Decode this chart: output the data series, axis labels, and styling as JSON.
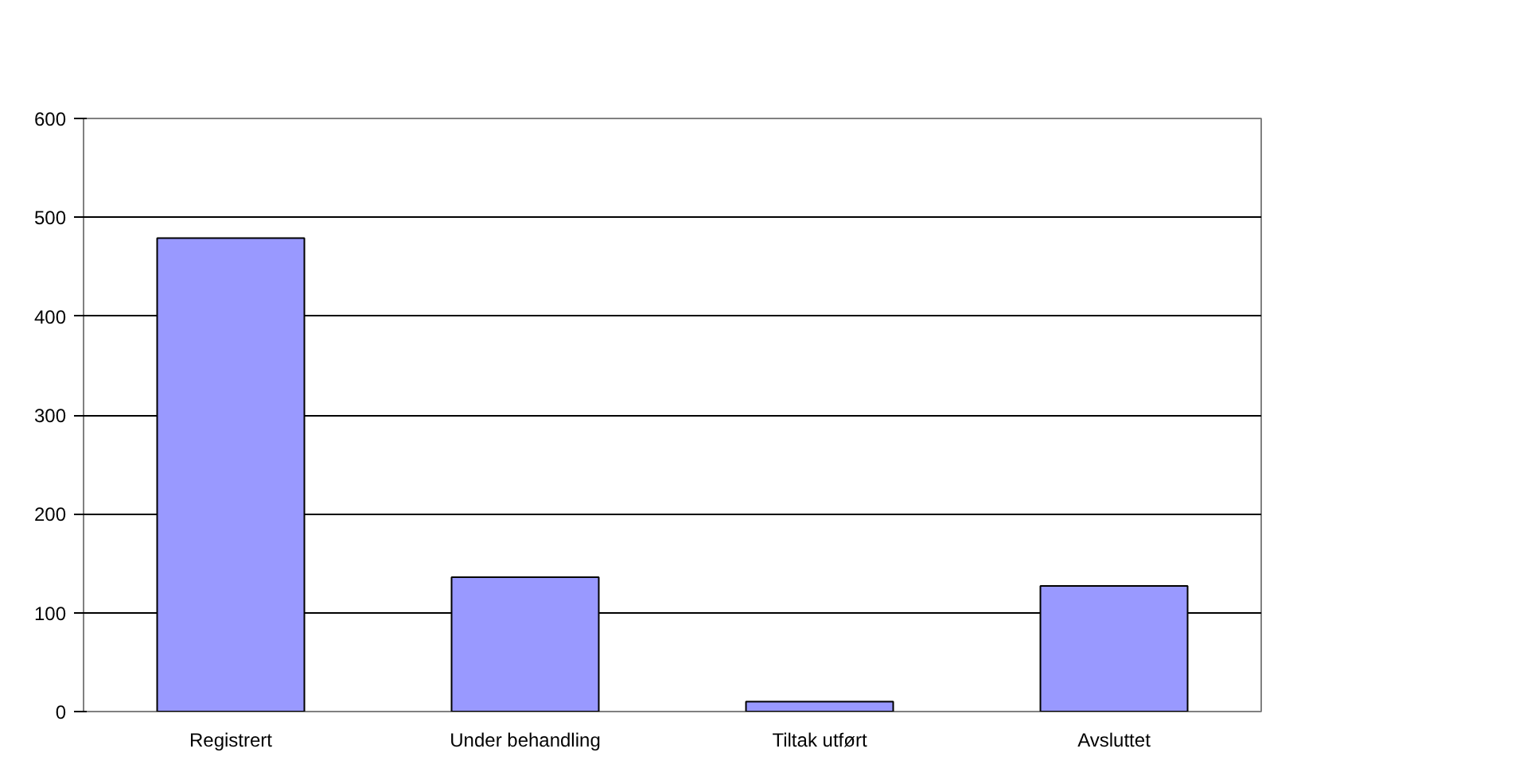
{
  "chart_data": {
    "type": "bar",
    "categories": [
      "Registrert",
      "Under behandling",
      "Tiltak utført",
      "Avsluttet"
    ],
    "values": [
      479,
      136,
      10,
      127
    ],
    "color": "#9999ff",
    "ylim": [
      0,
      600
    ],
    "yticks": [
      0,
      100,
      200,
      300,
      400,
      500,
      600
    ],
    "grid": "y"
  }
}
